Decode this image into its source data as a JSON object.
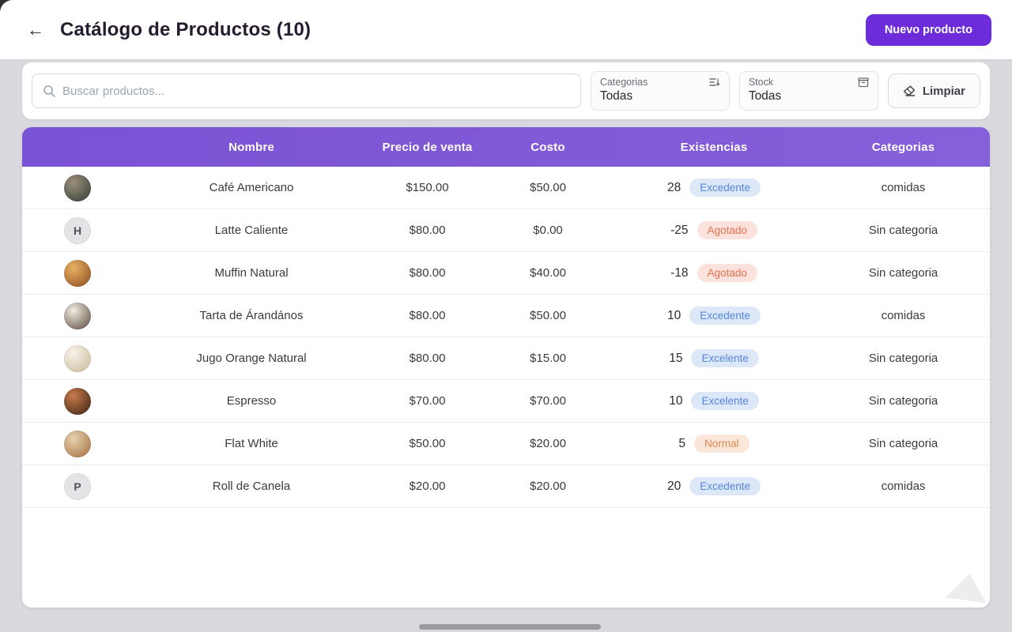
{
  "header": {
    "back_icon": "←",
    "title": "Catálogo de Productos (10)",
    "new_product_label": "Nuevo producto"
  },
  "filters": {
    "search_placeholder": "Buscar productos...",
    "categories_label": "Categorias",
    "categories_value": "Todas",
    "stock_label": "Stock",
    "stock_value": "Todas",
    "clear_label": "Limpiar"
  },
  "colors": {
    "accent_purple": "#6d2cd9",
    "table_header_purple": "#7e57d6",
    "badge_blue_bg": "#dce7f8",
    "badge_blue_text": "#5585de",
    "badge_red_bg": "#fbe2dc",
    "badge_red_text": "#e2714e",
    "badge_orange_bg": "#fbe6da",
    "badge_orange_text": "#e08a4e"
  },
  "table": {
    "columns": [
      "",
      "Nombre",
      "Precio de venta",
      "Costo",
      "Existencias",
      "Categorias"
    ],
    "rows": [
      {
        "name": "Café Americano",
        "price": "$150.00",
        "cost": "$50.00",
        "stock": "28",
        "status": "Excedente",
        "status_type": "excedente",
        "category": "comidas",
        "avatar": {
          "type": "photo",
          "c1": "#9c8f7a",
          "c2": "#2f3c38"
        }
      },
      {
        "name": "Latte Caliente",
        "price": "$80.00",
        "cost": "$0.00",
        "stock": "-25",
        "status": "Agotado",
        "status_type": "agotado",
        "category": "Sin categoria",
        "avatar": {
          "type": "letter",
          "letter": "H"
        }
      },
      {
        "name": "Muffin Natural",
        "price": "$80.00",
        "cost": "$40.00",
        "stock": "-18",
        "status": "Agotado",
        "status_type": "agotado",
        "category": "Sin categoria",
        "avatar": {
          "type": "photo",
          "c1": "#e8b264",
          "c2": "#8a4a1f"
        }
      },
      {
        "name": "Tarta de Árandános",
        "price": "$80.00",
        "cost": "$50.00",
        "stock": "10",
        "status": "Excedente",
        "status_type": "excedente",
        "category": "comidas",
        "avatar": {
          "type": "photo",
          "c1": "#f0ece4",
          "c2": "#5a4638"
        }
      },
      {
        "name": "Jugo Orange Natural",
        "price": "$80.00",
        "cost": "$15.00",
        "stock": "15",
        "status": "Excelente",
        "status_type": "excedente",
        "category": "Sin categoria",
        "avatar": {
          "type": "photo",
          "c1": "#f7f2e8",
          "c2": "#c9b89a"
        }
      },
      {
        "name": "Espresso",
        "price": "$70.00",
        "cost": "$70.00",
        "stock": "10",
        "status": "Excelente",
        "status_type": "excedente",
        "category": "Sin categoria",
        "avatar": {
          "type": "photo",
          "c1": "#c77b4a",
          "c2": "#3a1f12"
        }
      },
      {
        "name": "Flat White",
        "price": "$50.00",
        "cost": "$20.00",
        "stock": "5",
        "status": "Normal",
        "status_type": "normal",
        "category": "Sin categoria",
        "avatar": {
          "type": "photo",
          "c1": "#e8d3b0",
          "c2": "#a06a3a"
        }
      },
      {
        "name": "Roll de Canela",
        "price": "$20.00",
        "cost": "$20.00",
        "stock": "20",
        "status": "Excedente",
        "status_type": "excedente",
        "category": "comidas",
        "avatar": {
          "type": "letter",
          "letter": "P"
        }
      }
    ]
  }
}
